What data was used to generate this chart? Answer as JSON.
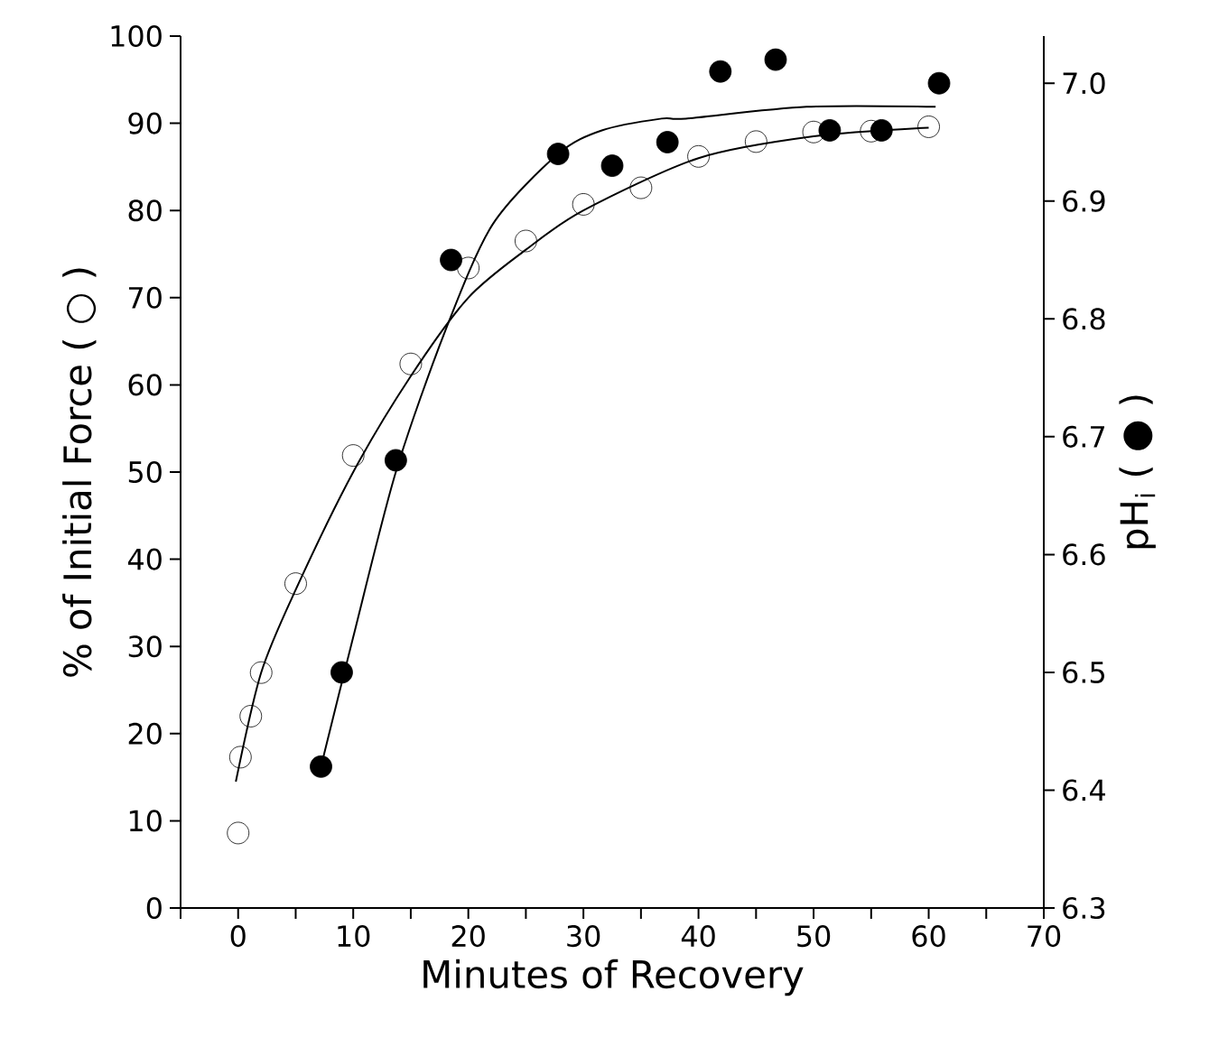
{
  "chart_data": {
    "type": "scatter",
    "xlabel": "Minutes of Recovery",
    "ylabel": "% of Initial Force ( ○ )",
    "y2label": "pH$_{i}$ ( ● )",
    "xlim": [
      -5,
      70
    ],
    "xticks": [
      {
        "value": -5,
        "label": null
      },
      0,
      {
        "value": 5,
        "label": null
      },
      10,
      {
        "value": 15,
        "label": null
      },
      20,
      {
        "value": 25,
        "label": null
      },
      30,
      {
        "value": 35,
        "label": null
      },
      40,
      {
        "value": 45,
        "label": null
      },
      50,
      {
        "value": 55,
        "label": null
      },
      60,
      {
        "value": 65,
        "label": null
      },
      70
    ],
    "ylim": [
      0,
      100
    ],
    "yticks": [
      0,
      10,
      20,
      30,
      40,
      50,
      60,
      70,
      80,
      90,
      100
    ],
    "y2lim": [
      6.3,
      7.04
    ],
    "y2ticks": [
      6.3,
      6.4,
      6.5,
      6.6,
      6.7,
      6.8,
      6.9,
      {
        "value": 7.0,
        "label": "7.0"
      }
    ],
    "grid": false,
    "series": [
      {
        "marker": "circle-open",
        "color": "#000000",
        "x": [
          0,
          0.2,
          1.1,
          2,
          5,
          10,
          15,
          20,
          25,
          30,
          35,
          40,
          45,
          50,
          55,
          60
        ],
        "values": [
          8.6,
          17.3,
          22,
          27,
          37.2,
          51.9,
          62.4,
          73.4,
          76.5,
          80.7,
          82.6,
          86.2,
          87.9,
          89,
          89.1,
          89.6
        ]
      },
      {
        "marker": "circle",
        "color": "#000000",
        "axis": "y2",
        "x": [
          7.2,
          9,
          13.7,
          18.5,
          27.8,
          32.5,
          37.3,
          41.9,
          46.7,
          51.4,
          55.9,
          60.9
        ],
        "values": [
          6.42,
          6.5,
          6.68,
          6.85,
          6.94,
          6.93,
          6.95,
          7.01,
          7.02,
          6.96,
          6.96,
          7.0
        ]
      },
      {
        "type": "line",
        "marker": "none",
        "color": "#000000",
        "x": [
          -0.2,
          2,
          5,
          10,
          15,
          20,
          25,
          30,
          40,
          50,
          60
        ],
        "values": [
          14.5,
          27,
          36.5,
          50,
          61,
          70,
          75.5,
          80,
          86,
          88.5,
          89.5
        ]
      },
      {
        "type": "line",
        "marker": "none",
        "color": "#000000",
        "axis": "y2",
        "x": [
          7.2,
          10,
          13.7,
          18,
          22.1,
          27.8,
          31.6,
          36.8,
          38.9,
          49.4,
          60.6
        ],
        "values": [
          6.42,
          6.53,
          6.67,
          6.79,
          6.88,
          6.94,
          6.96,
          6.97,
          6.97,
          6.98,
          6.98
        ]
      }
    ]
  }
}
